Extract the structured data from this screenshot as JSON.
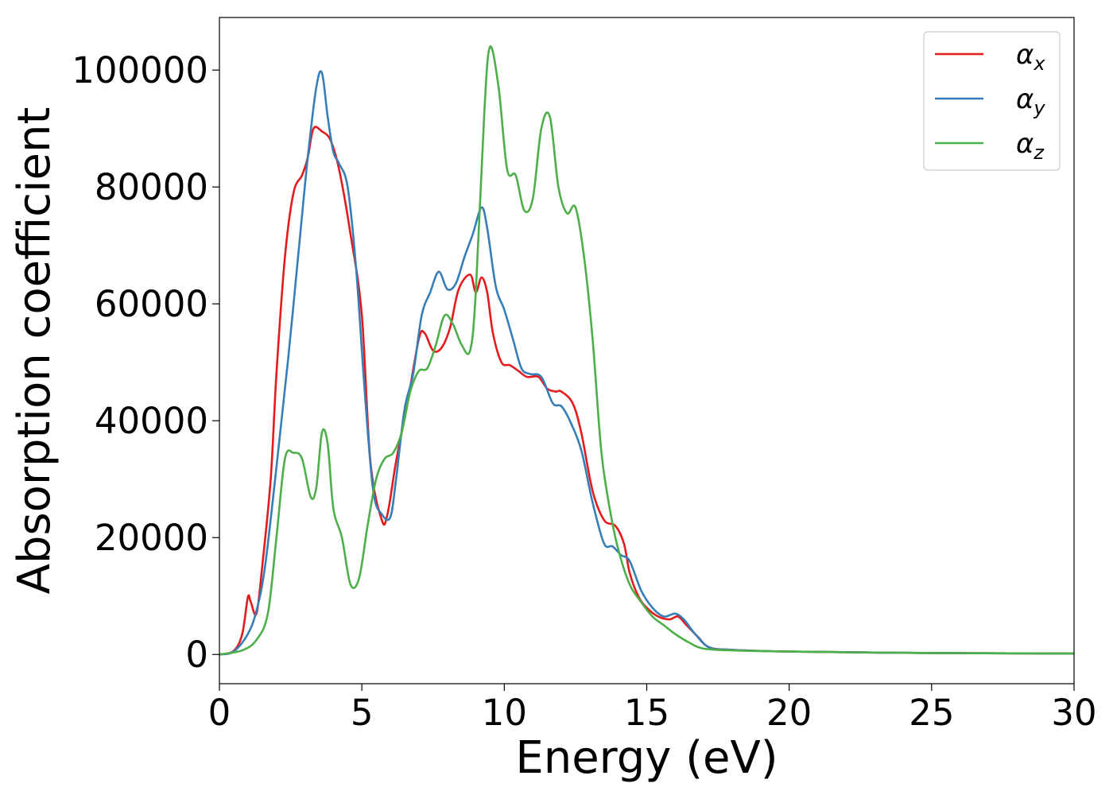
{
  "chart_data": {
    "type": "line",
    "xlabel": "Energy (eV)",
    "ylabel": "Absorption coefficient",
    "xlim": [
      0,
      30
    ],
    "ylim": [
      -5000,
      109000
    ],
    "xticks": [
      0,
      5,
      10,
      15,
      20,
      25,
      30
    ],
    "xtick_labels": [
      "0",
      "5",
      "10",
      "15",
      "20",
      "25",
      "30"
    ],
    "yticks": [
      0,
      20000,
      40000,
      60000,
      80000,
      100000
    ],
    "ytick_labels": [
      "0",
      "20000",
      "40000",
      "60000",
      "80000",
      "100000"
    ],
    "grid": false,
    "legend_position": "top-right",
    "series": [
      {
        "name": "α",
        "subscript": "x",
        "color": "#e41a1c",
        "x": [
          0,
          0.5,
          0.8,
          1.0,
          1.1,
          1.3,
          1.5,
          1.8,
          2.0,
          2.3,
          2.6,
          2.9,
          3.1,
          3.3,
          3.6,
          3.9,
          4.2,
          4.6,
          5.0,
          5.3,
          5.7,
          5.9,
          6.2,
          6.6,
          7.0,
          7.2,
          7.5,
          7.8,
          8.1,
          8.4,
          8.8,
          9.0,
          9.2,
          9.4,
          9.6,
          9.9,
          10.2,
          10.5,
          10.8,
          11.2,
          11.5,
          11.8,
          12.0,
          12.4,
          12.7,
          13.1,
          13.5,
          13.9,
          14.2,
          14.4,
          14.7,
          15.0,
          15.4,
          15.8,
          16.1,
          16.4,
          16.8,
          17.2,
          18,
          20,
          25,
          30
        ],
        "y": [
          0,
          600,
          3500,
          9800,
          9000,
          7000,
          15000,
          30000,
          48000,
          68000,
          79000,
          82000,
          85000,
          90000,
          89500,
          88000,
          83000,
          72000,
          58000,
          33000,
          23000,
          24000,
          33000,
          43000,
          54000,
          55000,
          52000,
          52500,
          56000,
          62500,
          65000,
          62000,
          64500,
          62000,
          55000,
          50000,
          49500,
          48500,
          47500,
          47500,
          45500,
          45000,
          45000,
          43000,
          38000,
          28000,
          23000,
          22000,
          19000,
          14000,
          10000,
          8000,
          6500,
          6000,
          6500,
          5000,
          3000,
          1200,
          800,
          500,
          250,
          150
        ]
      },
      {
        "name": "α",
        "subscript": "y",
        "color": "#377eb8",
        "x": [
          0,
          0.5,
          1.0,
          1.3,
          1.6,
          2.0,
          2.4,
          2.8,
          3.1,
          3.4,
          3.6,
          3.8,
          4.0,
          4.2,
          4.5,
          4.8,
          5.1,
          5.4,
          5.7,
          6.0,
          6.2,
          6.5,
          6.8,
          7.1,
          7.4,
          7.7,
          8.0,
          8.3,
          8.6,
          8.9,
          9.2,
          9.4,
          9.7,
          10.0,
          10.3,
          10.6,
          10.9,
          11.3,
          11.7,
          12.0,
          12.3,
          12.7,
          13.1,
          13.5,
          13.8,
          14.1,
          14.4,
          14.8,
          15.2,
          15.6,
          16.0,
          16.3,
          16.7,
          17.2,
          18,
          20,
          25,
          30
        ],
        "y": [
          0,
          500,
          3500,
          7500,
          15000,
          32000,
          50000,
          70000,
          85000,
          97000,
          99500,
          92000,
          86000,
          84000,
          80000,
          66000,
          45000,
          28000,
          24000,
          23500,
          30000,
          42000,
          48000,
          58000,
          62000,
          65500,
          62500,
          63500,
          68000,
          72000,
          76500,
          73000,
          63000,
          59000,
          54000,
          49000,
          48000,
          47500,
          43000,
          42500,
          40000,
          35000,
          26000,
          19000,
          18500,
          17000,
          16000,
          11000,
          8000,
          6500,
          7000,
          6000,
          3500,
          1200,
          800,
          500,
          250,
          150
        ]
      },
      {
        "name": "α",
        "subscript": "z",
        "color": "#4daf4a",
        "x": [
          0,
          0.8,
          1.3,
          1.7,
          2.0,
          2.3,
          2.6,
          2.9,
          3.2,
          3.4,
          3.6,
          3.8,
          4.0,
          4.3,
          4.6,
          4.9,
          5.2,
          5.5,
          5.8,
          6.1,
          6.4,
          6.7,
          7.0,
          7.3,
          7.6,
          7.9,
          8.2,
          8.5,
          8.8,
          9.0,
          9.3,
          9.5,
          9.8,
          10.1,
          10.4,
          10.7,
          11.0,
          11.3,
          11.6,
          11.9,
          12.2,
          12.5,
          12.8,
          13.1,
          13.4,
          13.7,
          14.0,
          14.4,
          14.8,
          15.2,
          15.6,
          16.0,
          16.5,
          17.0,
          18,
          20,
          25,
          30
        ],
        "y": [
          0,
          700,
          2500,
          7000,
          20000,
          33500,
          34500,
          33500,
          27000,
          28500,
          38000,
          36000,
          25000,
          20000,
          12000,
          13000,
          22000,
          30000,
          33500,
          34500,
          38000,
          45000,
          48500,
          49000,
          53000,
          58000,
          56500,
          53000,
          52000,
          62000,
          93000,
          104000,
          97000,
          83000,
          82000,
          76000,
          78000,
          90000,
          92000,
          80000,
          75500,
          76500,
          68000,
          54000,
          35000,
          25000,
          18000,
          12000,
          9000,
          6500,
          5000,
          3500,
          2000,
          1000,
          700,
          500,
          250,
          150
        ]
      }
    ]
  }
}
